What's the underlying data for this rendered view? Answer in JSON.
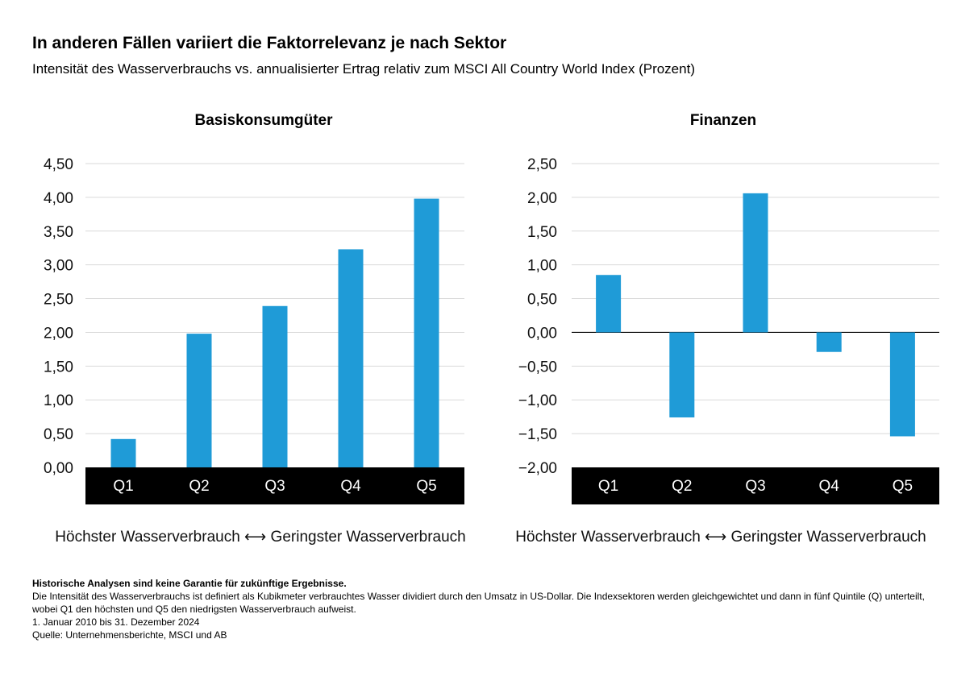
{
  "title": "In anderen Fällen variiert die Faktorrelevanz je nach Sektor",
  "subtitle": "Intensität des Wasserverbrauchs vs. annualisierter Ertrag relativ zum MSCI All Country World Index (Prozent)",
  "colors": {
    "bar": "#1f9bd7",
    "axis_band": "#000000",
    "grid": "#d9d9d9"
  },
  "chart_data": [
    {
      "type": "bar",
      "title": "Basiskonsumgüter",
      "categories": [
        "Q1",
        "Q2",
        "Q3",
        "Q4",
        "Q5"
      ],
      "values": [
        0.42,
        1.98,
        2.39,
        3.23,
        3.98
      ],
      "ylim": [
        0,
        4.5
      ],
      "yticks": [
        0,
        0.5,
        1,
        1.5,
        2,
        2.5,
        3,
        3.5,
        4,
        4.5
      ],
      "ytick_labels": [
        "0,00",
        "0,50",
        "1,00",
        "1,50",
        "2,00",
        "2,50",
        "3,00",
        "3,50",
        "4,00",
        "4,50"
      ],
      "xlabel": "Höchster Wasserverbrauch ⟷ Geringster Wasserverbrauch",
      "ylabel": "",
      "grid": true
    },
    {
      "type": "bar",
      "title": "Finanzen",
      "categories": [
        "Q1",
        "Q2",
        "Q3",
        "Q4",
        "Q5"
      ],
      "values": [
        0.85,
        -1.26,
        2.06,
        -0.29,
        -1.54
      ],
      "ylim": [
        -2,
        2.5
      ],
      "yticks": [
        -2,
        -1.5,
        -1,
        -0.5,
        0,
        0.5,
        1,
        1.5,
        2,
        2.5
      ],
      "ytick_labels": [
        "−2,00",
        "−1,50",
        "−1,00",
        "−0,50",
        "0,00",
        "0,50",
        "1,00",
        "1,50",
        "2,00",
        "2,50"
      ],
      "xlabel": "Höchster Wasserverbrauch ⟷ Geringster Wasserverbrauch",
      "ylabel": "",
      "grid": true
    }
  ],
  "notes": {
    "disclaimer": "Historische Analysen sind keine Garantie für zukünftige Ergebnisse.",
    "definition": "Die Intensität des Wasserverbrauchs ist definiert als Kubikmeter verbrauchtes Wasser dividiert durch den Umsatz in US-Dollar. Die Indexsektoren werden gleichgewichtet und dann in fünf Quintile (Q) unterteilt, wobei Q1 den höchsten und Q5 den niedrigsten Wasserverbrauch aufweist.",
    "period": "1. Januar 2010 bis 31. Dezember 2024",
    "source": "Quelle: Unternehmensberichte, MSCI und AB"
  }
}
